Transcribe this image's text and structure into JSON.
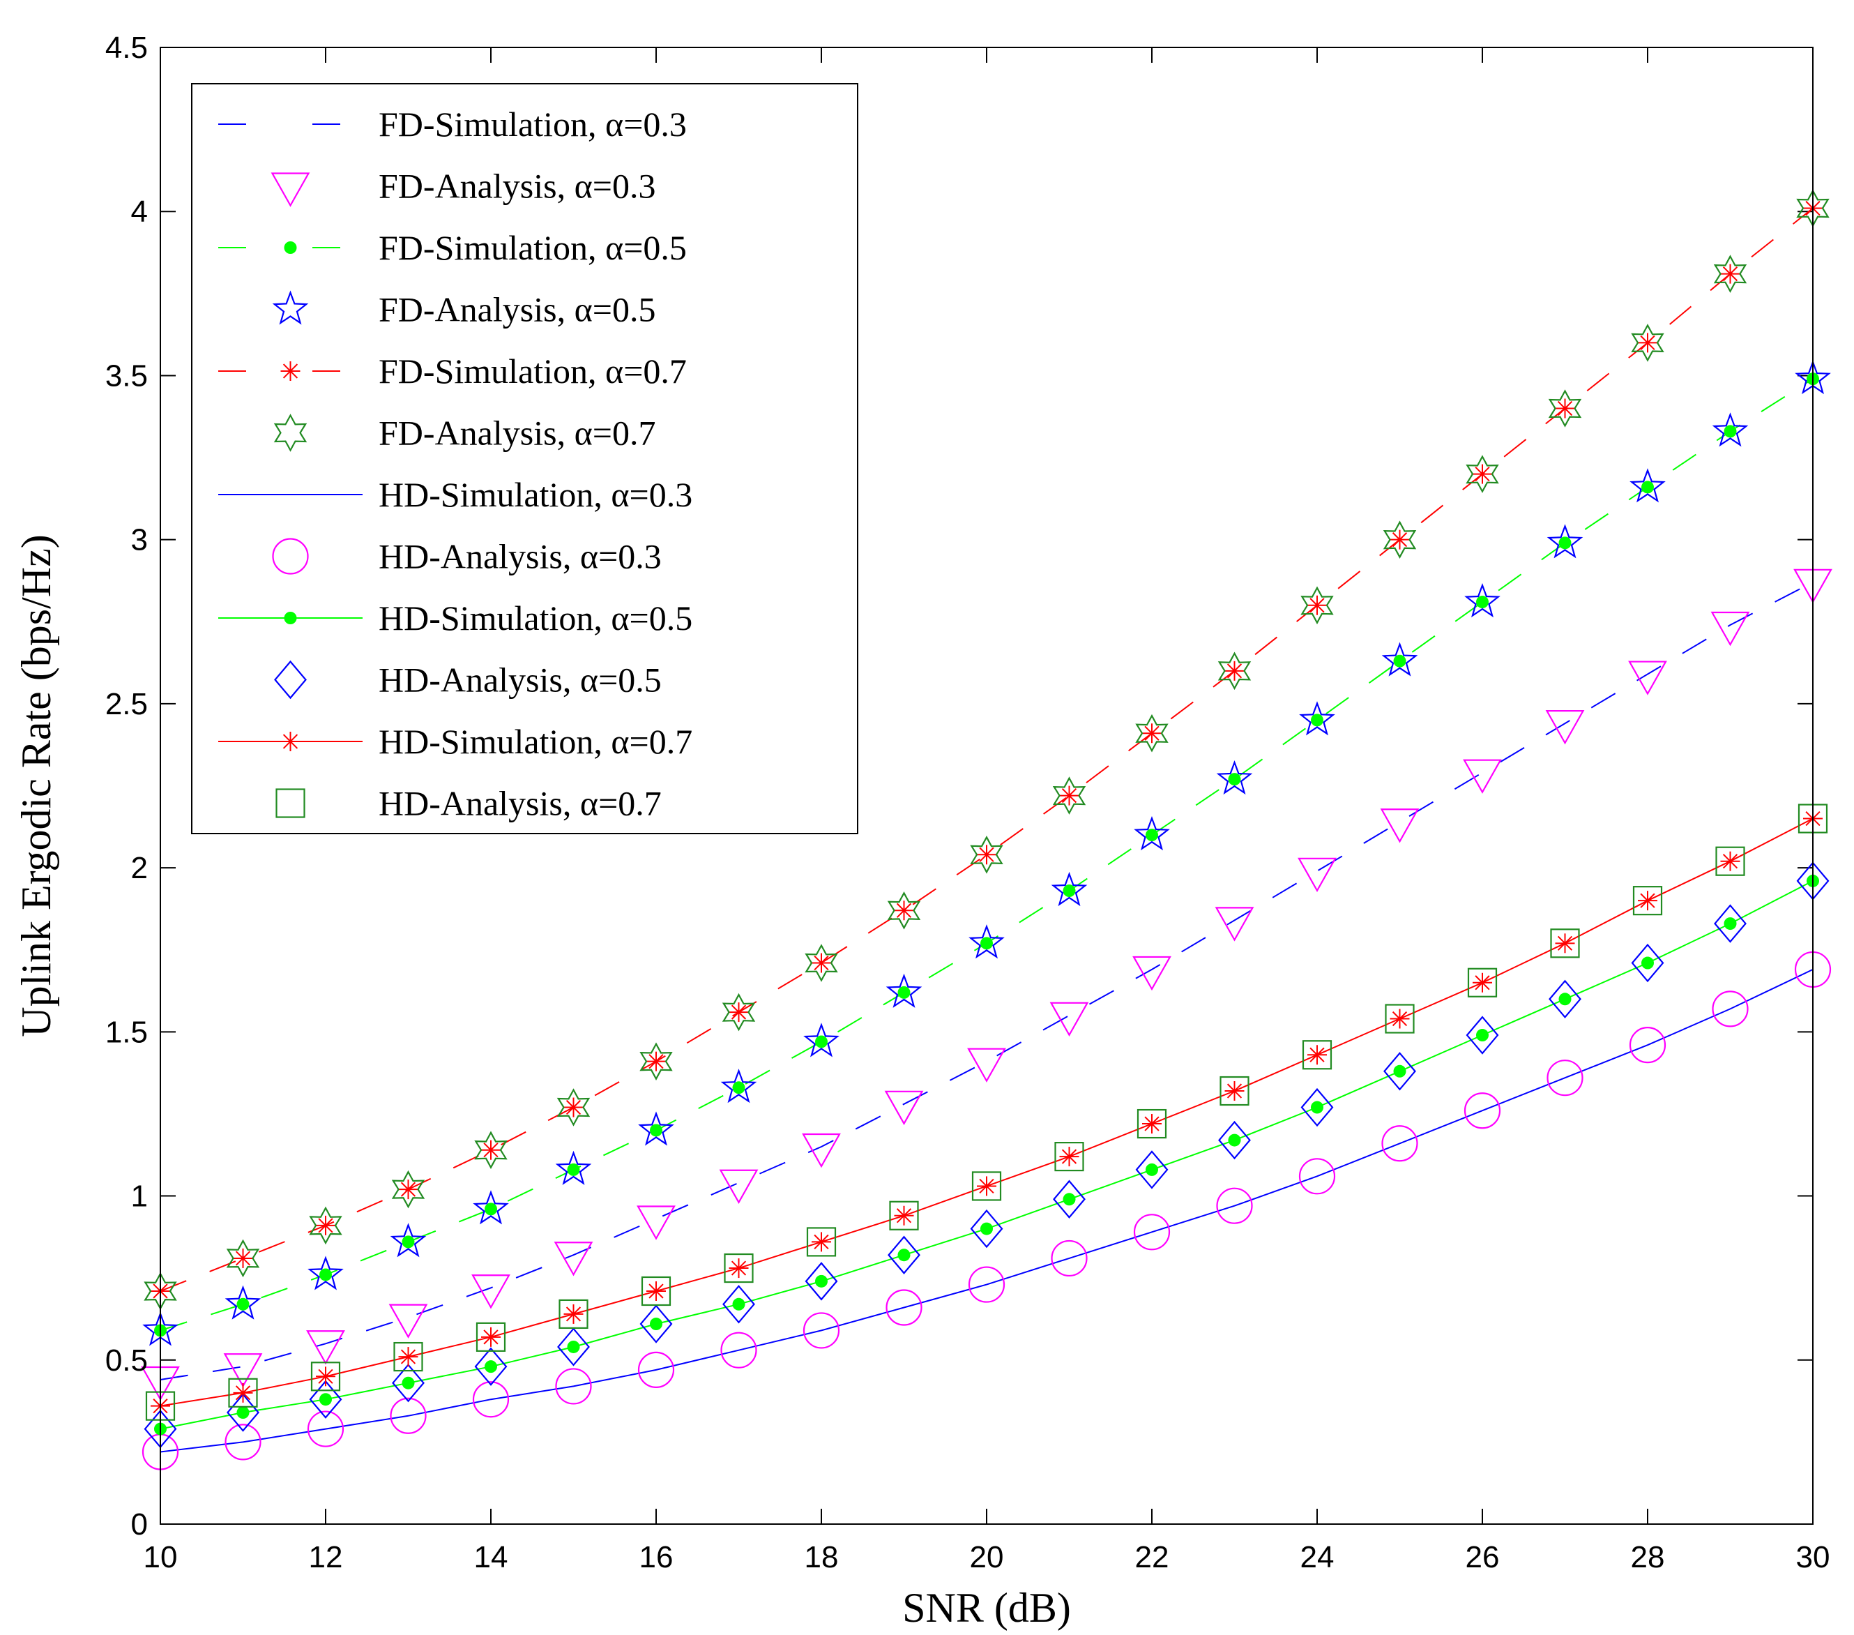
{
  "chart_data": {
    "type": "line",
    "title": "",
    "xlabel": "SNR (dB)",
    "ylabel": "Uplink Ergodic Rate (bps/Hz)",
    "xlim": [
      10,
      30
    ],
    "ylim": [
      0,
      4.5
    ],
    "xticks": [
      "10",
      "12",
      "14",
      "16",
      "18",
      "20",
      "22",
      "24",
      "26",
      "28",
      "30"
    ],
    "yticks": [
      "0",
      "0.5",
      "1",
      "1.5",
      "2",
      "2.5",
      "3",
      "3.5",
      "4",
      "4.5"
    ],
    "legend_position": "top-left",
    "x": [
      10,
      11,
      12,
      13,
      14,
      15,
      16,
      17,
      18,
      19,
      20,
      21,
      22,
      23,
      24,
      25,
      26,
      27,
      28,
      29,
      30
    ],
    "series": [
      {
        "name": "FD-Simulation, α=0.3",
        "color": "#0000ff",
        "line": "dashed",
        "marker": "none",
        "values": [
          0.44,
          0.48,
          0.55,
          0.63,
          0.72,
          0.82,
          0.93,
          1.04,
          1.15,
          1.28,
          1.41,
          1.55,
          1.69,
          1.84,
          1.99,
          2.14,
          2.29,
          2.44,
          2.59,
          2.74,
          2.87
        ]
      },
      {
        "name": "FD-Analysis, α=0.3",
        "color": "#ff00ff",
        "line": "none",
        "marker": "triangle-down",
        "values": [
          0.44,
          0.48,
          0.55,
          0.63,
          0.72,
          0.82,
          0.93,
          1.04,
          1.15,
          1.28,
          1.41,
          1.55,
          1.69,
          1.84,
          1.99,
          2.14,
          2.29,
          2.44,
          2.59,
          2.74,
          2.87
        ]
      },
      {
        "name": "FD-Simulation, α=0.5",
        "color": "#00ff00",
        "line": "dashed",
        "marker": "dot",
        "values": [
          0.59,
          0.67,
          0.76,
          0.86,
          0.96,
          1.08,
          1.2,
          1.33,
          1.47,
          1.62,
          1.77,
          1.93,
          2.1,
          2.27,
          2.45,
          2.63,
          2.81,
          2.99,
          3.16,
          3.33,
          3.49
        ]
      },
      {
        "name": "FD-Analysis, α=0.5",
        "color": "#0000ff",
        "line": "none",
        "marker": "star5",
        "values": [
          0.59,
          0.67,
          0.76,
          0.86,
          0.96,
          1.08,
          1.2,
          1.33,
          1.47,
          1.62,
          1.77,
          1.93,
          2.1,
          2.27,
          2.45,
          2.63,
          2.81,
          2.99,
          3.16,
          3.33,
          3.49
        ]
      },
      {
        "name": "FD-Simulation, α=0.7",
        "color": "#ff0000",
        "line": "dashed",
        "marker": "asterisk",
        "values": [
          0.71,
          0.81,
          0.91,
          1.02,
          1.14,
          1.27,
          1.41,
          1.56,
          1.71,
          1.87,
          2.04,
          2.22,
          2.41,
          2.6,
          2.8,
          3.0,
          3.2,
          3.4,
          3.6,
          3.81,
          4.01
        ]
      },
      {
        "name": "FD-Analysis, α=0.7",
        "color": "#228b22",
        "line": "none",
        "marker": "hexagram",
        "values": [
          0.71,
          0.81,
          0.91,
          1.02,
          1.14,
          1.27,
          1.41,
          1.56,
          1.71,
          1.87,
          2.04,
          2.22,
          2.41,
          2.6,
          2.8,
          3.0,
          3.2,
          3.4,
          3.6,
          3.81,
          4.01
        ]
      },
      {
        "name": "HD-Simulation, α=0.3",
        "color": "#0000ff",
        "line": "solid",
        "marker": "none",
        "values": [
          0.22,
          0.25,
          0.29,
          0.33,
          0.38,
          0.42,
          0.47,
          0.53,
          0.59,
          0.66,
          0.73,
          0.81,
          0.89,
          0.97,
          1.06,
          1.16,
          1.26,
          1.36,
          1.46,
          1.57,
          1.69
        ]
      },
      {
        "name": "HD-Analysis, α=0.3",
        "color": "#ff00ff",
        "line": "none",
        "marker": "circle",
        "values": [
          0.22,
          0.25,
          0.29,
          0.33,
          0.38,
          0.42,
          0.47,
          0.53,
          0.59,
          0.66,
          0.73,
          0.81,
          0.89,
          0.97,
          1.06,
          1.16,
          1.26,
          1.36,
          1.46,
          1.57,
          1.69
        ]
      },
      {
        "name": "HD-Simulation, α=0.5",
        "color": "#00ff00",
        "line": "solid",
        "marker": "dot",
        "values": [
          0.29,
          0.34,
          0.38,
          0.43,
          0.48,
          0.54,
          0.61,
          0.67,
          0.74,
          0.82,
          0.9,
          0.99,
          1.08,
          1.17,
          1.27,
          1.38,
          1.49,
          1.6,
          1.71,
          1.83,
          1.96
        ]
      },
      {
        "name": "HD-Analysis, α=0.5",
        "color": "#0000ff",
        "line": "none",
        "marker": "diamond",
        "values": [
          0.29,
          0.34,
          0.38,
          0.43,
          0.48,
          0.54,
          0.61,
          0.67,
          0.74,
          0.82,
          0.9,
          0.99,
          1.08,
          1.17,
          1.27,
          1.38,
          1.49,
          1.6,
          1.71,
          1.83,
          1.96
        ]
      },
      {
        "name": "HD-Simulation, α=0.7",
        "color": "#ff0000",
        "line": "solid",
        "marker": "asterisk",
        "values": [
          0.36,
          0.4,
          0.45,
          0.51,
          0.57,
          0.64,
          0.71,
          0.78,
          0.86,
          0.94,
          1.03,
          1.12,
          1.22,
          1.32,
          1.43,
          1.54,
          1.65,
          1.77,
          1.9,
          2.02,
          2.15
        ]
      },
      {
        "name": "HD-Analysis, α=0.7",
        "color": "#228b22",
        "line": "none",
        "marker": "square",
        "values": [
          0.36,
          0.4,
          0.45,
          0.51,
          0.57,
          0.64,
          0.71,
          0.78,
          0.86,
          0.94,
          1.03,
          1.12,
          1.22,
          1.32,
          1.43,
          1.54,
          1.65,
          1.77,
          1.9,
          2.02,
          2.15
        ]
      }
    ]
  }
}
